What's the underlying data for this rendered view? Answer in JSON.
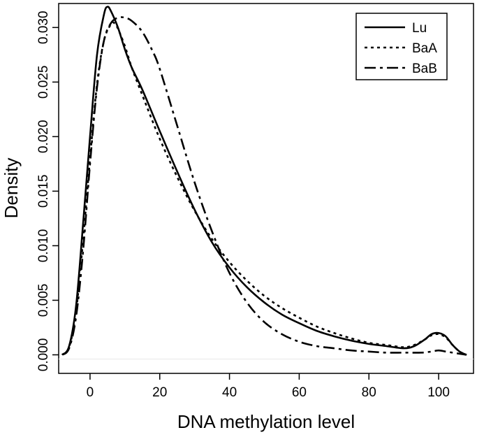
{
  "chart_data": {
    "type": "line",
    "title": "",
    "xlabel": "DNA methylation level",
    "ylabel": "Density",
    "xlim": [
      -9,
      110
    ],
    "ylim": [
      -0.0017,
      0.0322
    ],
    "xticks": [
      0,
      20,
      40,
      60,
      80,
      100
    ],
    "xtick_labels": [
      "0",
      "20",
      "40",
      "60",
      "80",
      "100"
    ],
    "yticks": [
      0.0,
      0.005,
      0.01,
      0.015,
      0.02,
      0.025,
      0.03
    ],
    "ytick_labels": [
      "0.000",
      "0.005",
      "0.010",
      "0.015",
      "0.020",
      "0.025",
      "0.030"
    ],
    "grid": false,
    "legend_position": "top-right",
    "series": [
      {
        "name": "Lu",
        "line_style": "solid",
        "color": "#000000",
        "x": [
          -8,
          -6,
          -4,
          -2,
          0,
          2,
          4,
          5,
          6,
          8,
          10,
          12,
          15,
          20,
          25,
          30,
          35,
          40,
          45,
          50,
          55,
          60,
          65,
          70,
          75,
          80,
          85,
          90,
          93,
          96,
          98,
          100,
          102,
          104,
          106,
          108
        ],
        "y": [
          0.0,
          0.0008,
          0.0045,
          0.012,
          0.02,
          0.0275,
          0.0312,
          0.0319,
          0.0315,
          0.03,
          0.028,
          0.0263,
          0.0243,
          0.0205,
          0.0168,
          0.0133,
          0.0103,
          0.008,
          0.0062,
          0.0048,
          0.0037,
          0.0029,
          0.0022,
          0.0017,
          0.0013,
          0.001,
          0.0008,
          0.0006,
          0.0008,
          0.0014,
          0.0019,
          0.002,
          0.0017,
          0.0009,
          0.0003,
          0.0
        ]
      },
      {
        "name": "BaA",
        "line_style": "dotted",
        "color": "#000000",
        "x": [
          -8,
          -6,
          -4,
          -2,
          0,
          2,
          4,
          6,
          7,
          8,
          10,
          12,
          15,
          20,
          25,
          30,
          35,
          40,
          45,
          50,
          55,
          60,
          65,
          70,
          75,
          80,
          85,
          90,
          93,
          96,
          98,
          100,
          102,
          104,
          106,
          108
        ],
        "y": [
          0.0,
          0.0007,
          0.004,
          0.0105,
          0.018,
          0.0248,
          0.0288,
          0.0303,
          0.0304,
          0.0299,
          0.0283,
          0.0263,
          0.0238,
          0.0198,
          0.0163,
          0.0132,
          0.0106,
          0.0085,
          0.0068,
          0.0054,
          0.0043,
          0.0034,
          0.0026,
          0.002,
          0.0015,
          0.0011,
          0.0009,
          0.0007,
          0.0009,
          0.0014,
          0.0018,
          0.0019,
          0.0016,
          0.0009,
          0.0003,
          0.0
        ]
      },
      {
        "name": "BaB",
        "line_style": "dashdot",
        "color": "#000000",
        "x": [
          -8,
          -6,
          -4,
          -2,
          0,
          2,
          4,
          6,
          8,
          10,
          12,
          15,
          18,
          20,
          25,
          30,
          35,
          40,
          45,
          50,
          55,
          60,
          65,
          70,
          75,
          80,
          85,
          90,
          95,
          98,
          100,
          102,
          104,
          106,
          108
        ],
        "y": [
          0.0,
          0.0006,
          0.0035,
          0.0095,
          0.0175,
          0.0245,
          0.0288,
          0.0304,
          0.0309,
          0.0309,
          0.0306,
          0.0296,
          0.0278,
          0.0262,
          0.021,
          0.0158,
          0.0113,
          0.0075,
          0.0048,
          0.003,
          0.0019,
          0.0012,
          0.0008,
          0.0006,
          0.0004,
          0.0003,
          0.0002,
          0.0002,
          0.0002,
          0.0003,
          0.0004,
          0.0003,
          0.0002,
          0.0001,
          0.0
        ]
      }
    ]
  }
}
